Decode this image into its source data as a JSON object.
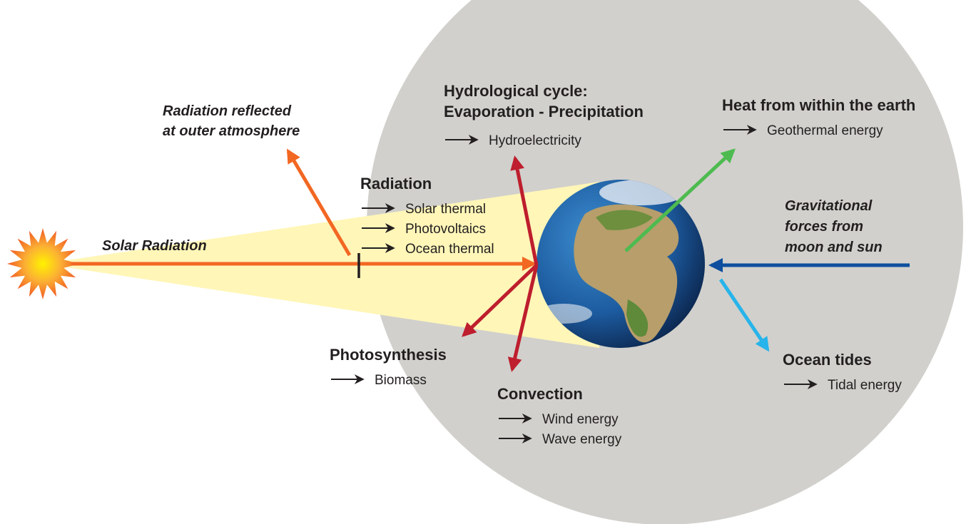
{
  "solar_radiation": "Solar Radiation",
  "reflected": [
    "Radiation reflected",
    "at outer atmosphere"
  ],
  "gravitational": [
    "Gravitational",
    "forces from",
    "moon and sun"
  ],
  "groups": [
    {
      "title": [
        "Radiation"
      ],
      "items": [
        "Solar thermal",
        "Photovoltaics",
        "Ocean thermal"
      ]
    },
    {
      "title": [
        "Hydrological cycle:",
        "Evaporation - Precipitation"
      ],
      "items": [
        "Hydroelectricity"
      ]
    },
    {
      "title": [
        "Heat from within the earth"
      ],
      "items": [
        "Geothermal energy"
      ]
    },
    {
      "title": [
        "Photosynthesis"
      ],
      "items": [
        "Biomass"
      ]
    },
    {
      "title": [
        "Convection"
      ],
      "items": [
        "Wind energy",
        "Wave energy"
      ]
    },
    {
      "title": [
        "Ocean tides"
      ],
      "items": [
        "Tidal energy"
      ]
    }
  ]
}
